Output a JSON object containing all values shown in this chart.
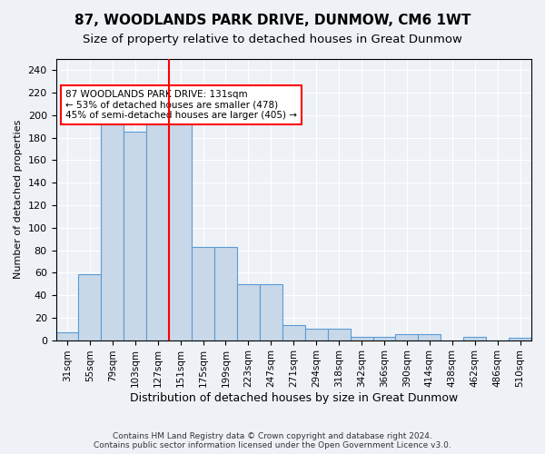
{
  "title": "87, WOODLANDS PARK DRIVE, DUNMOW, CM6 1WT",
  "subtitle": "Size of property relative to detached houses in Great Dunmow",
  "xlabel": "Distribution of detached houses by size in Great Dunmow",
  "ylabel": "Number of detached properties",
  "footer_line1": "Contains HM Land Registry data © Crown copyright and database right 2024.",
  "footer_line2": "Contains public sector information licensed under the Open Government Licence v3.0.",
  "bin_labels": [
    "31sqm",
    "55sqm",
    "79sqm",
    "103sqm",
    "127sqm",
    "151sqm",
    "175sqm",
    "199sqm",
    "223sqm",
    "247sqm",
    "271sqm",
    "294sqm",
    "318sqm",
    "342sqm",
    "366sqm",
    "390sqm",
    "414sqm",
    "438sqm",
    "462sqm",
    "486sqm",
    "510sqm"
  ],
  "bar_values": [
    7,
    59,
    200,
    185,
    193,
    193,
    83,
    83,
    50,
    50,
    13,
    10,
    10,
    3,
    3,
    5,
    5,
    0,
    3,
    0,
    2
  ],
  "bar_color": "#c8d8e8",
  "bar_edge_color": "#5b9bd5",
  "red_line_x": 4.5,
  "annotation_text": "87 WOODLANDS PARK DRIVE: 131sqm\n← 53% of detached houses are smaller (478)\n45% of semi-detached houses are larger (405) →",
  "ylim": [
    0,
    250
  ],
  "yticks": [
    0,
    20,
    40,
    60,
    80,
    100,
    120,
    140,
    160,
    180,
    200,
    220,
    240
  ],
  "background_color": "#eef2f7",
  "plot_bg_color": "#eef2f7",
  "title_fontsize": 11,
  "subtitle_fontsize": 9.5,
  "grid_color": "#ffffff"
}
